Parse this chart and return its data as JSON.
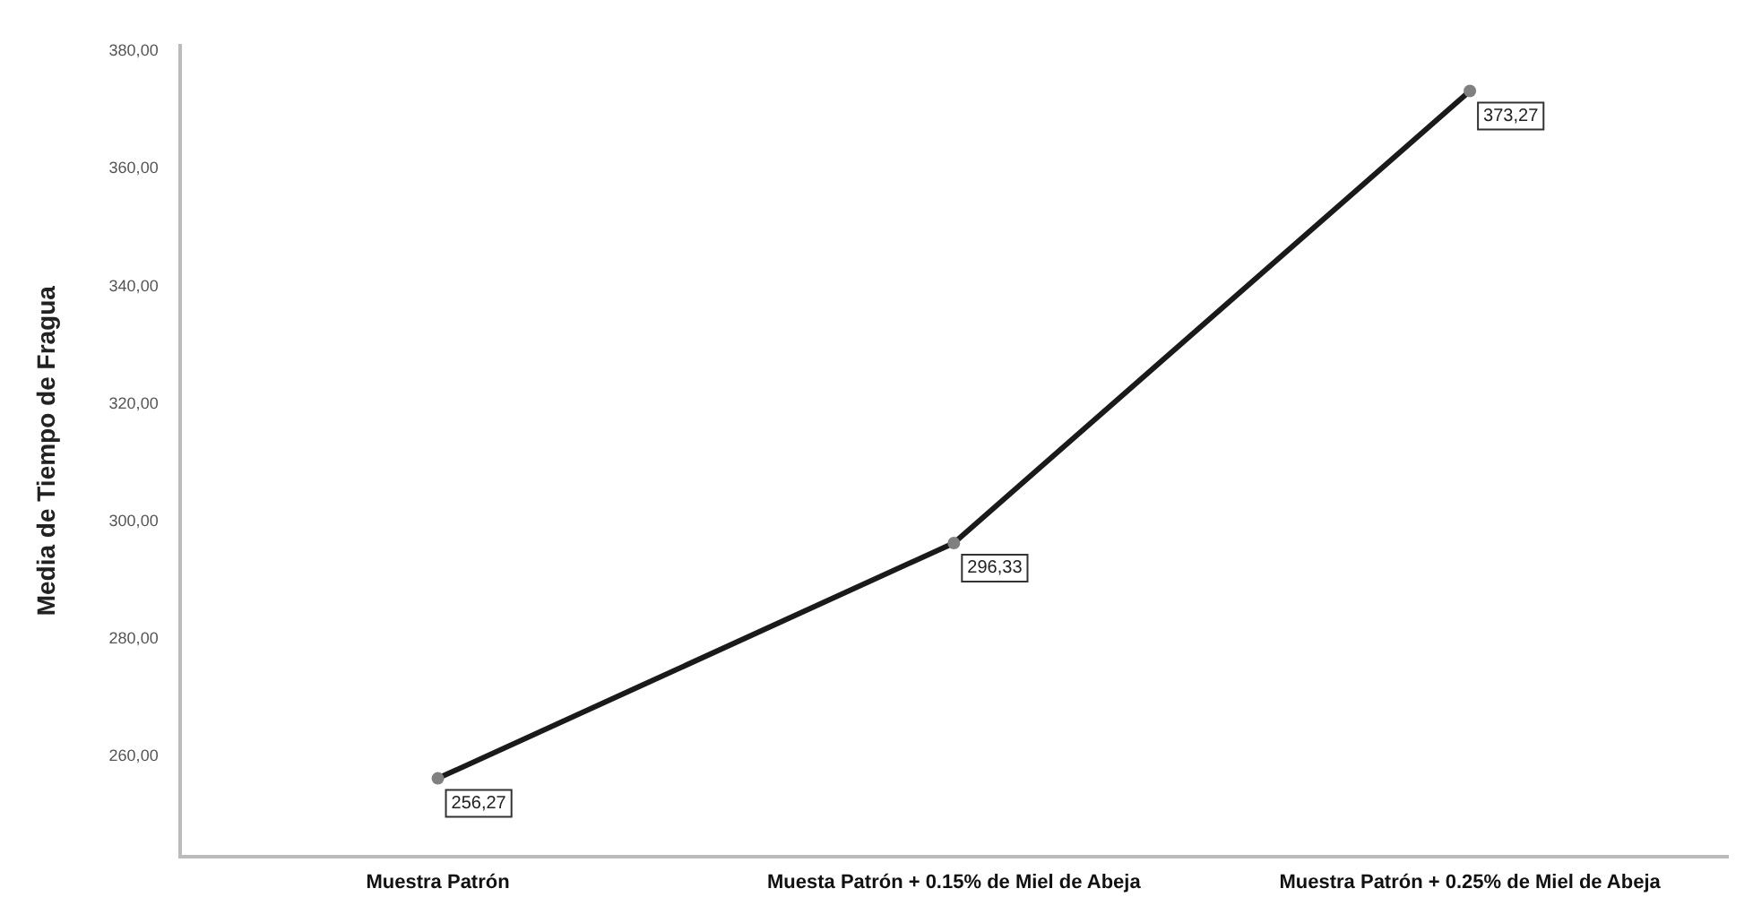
{
  "chart_data": {
    "type": "line",
    "ylabel": "Media de Tiempo de Fragua",
    "categories": [
      "Muestra Patrón",
      "Muesta Patrón + 0.15% de Miel de Abeja",
      "Muestra Patrón + 0.25% de Miel de Abeja"
    ],
    "series": [
      {
        "color": "#1a1a1a",
        "values": [
          256.27,
          296.33,
          373.27
        ],
        "value_labels": [
          "256,27",
          "296,33",
          "373,27"
        ]
      }
    ],
    "ylim": [
      243,
      381
    ],
    "yticks": [
      {
        "value": 260,
        "label": "260,00"
      },
      {
        "value": 280,
        "label": "280,00"
      },
      {
        "value": 300,
        "label": "300,00"
      },
      {
        "value": 320,
        "label": "320,00"
      },
      {
        "value": 340,
        "label": "340,00"
      },
      {
        "value": 360,
        "label": "360,00"
      },
      {
        "value": 380,
        "label": "380,00"
      }
    ],
    "grid": false,
    "legend": false,
    "marker": "circle",
    "line_style": "solid"
  }
}
